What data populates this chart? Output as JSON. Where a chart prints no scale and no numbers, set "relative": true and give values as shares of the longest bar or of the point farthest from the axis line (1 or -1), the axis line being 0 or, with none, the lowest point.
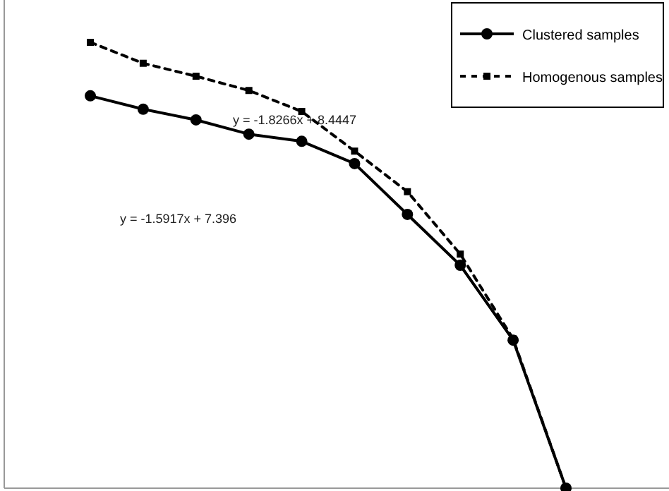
{
  "chart_data": {
    "type": "line",
    "relative": true,
    "legend": "top right",
    "categories": [
      null,
      null,
      null,
      null,
      null,
      null,
      null,
      null,
      null,
      null
    ],
    "series": [
      {
        "name": "Clustered samples",
        "color": "#000000",
        "marker": "circle",
        "line_style": "solid",
        "values": [
          0.88,
          0.85,
          0.826,
          0.794,
          0.778,
          0.728,
          0.614,
          0.5,
          0.332,
          0
        ]
      },
      {
        "name": "Homogenous samples",
        "color": "#000000",
        "marker": "square",
        "line_style": "dashed",
        "values": [
          1,
          0.953,
          0.924,
          0.892,
          0.845,
          0.756,
          0.665,
          0.525,
          0.335,
          0
        ]
      }
    ],
    "annotations": [
      "y = -1.8266x + 8.4447",
      "y = -1.5917x + 7.396"
    ]
  }
}
